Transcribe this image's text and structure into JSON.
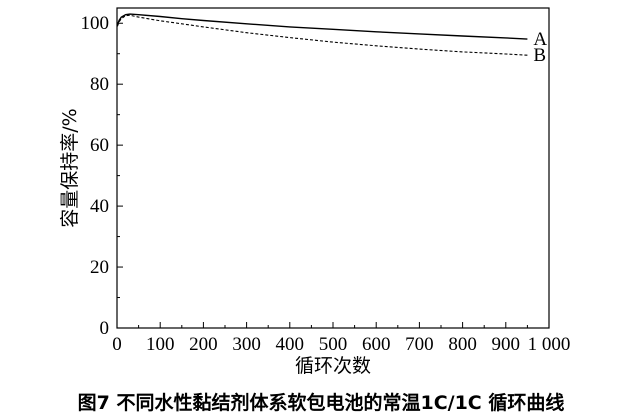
{
  "caption": "图7 不同水性黏结剂体系软包电池的常温1C/1C 循环曲线",
  "chart_data": {
    "type": "line",
    "xlabel": "循环次数",
    "ylabel": "容量保持率/%",
    "xlim": [
      0,
      1000
    ],
    "ylim": [
      0,
      105
    ],
    "x_ticks": [
      0,
      100,
      200,
      300,
      400,
      500,
      600,
      700,
      800,
      900,
      1000
    ],
    "x_tick_labels": [
      "0",
      "100",
      "200",
      "300",
      "400",
      "500",
      "600",
      "700",
      "800",
      "900",
      "1 000"
    ],
    "y_ticks": [
      0,
      20,
      40,
      60,
      80,
      100
    ],
    "y_tick_labels": [
      "0",
      "20",
      "40",
      "60",
      "80",
      "100"
    ],
    "grid": false,
    "series": [
      {
        "name": "A",
        "style": "solid",
        "color": "#000000",
        "x": [
          1,
          5,
          10,
          20,
          30,
          50,
          100,
          150,
          200,
          300,
          400,
          500,
          600,
          700,
          800,
          900,
          950
        ],
        "y": [
          99.5,
          101.0,
          102.0,
          102.8,
          103.0,
          102.8,
          102.2,
          101.5,
          100.9,
          99.8,
          98.8,
          98.0,
          97.2,
          96.5,
          95.8,
          95.2,
          94.8
        ]
      },
      {
        "name": "B",
        "style": "dashed",
        "color": "#000000",
        "x": [
          1,
          5,
          10,
          20,
          30,
          50,
          100,
          150,
          200,
          300,
          400,
          500,
          600,
          700,
          800,
          900,
          950
        ],
        "y": [
          99.0,
          100.5,
          101.5,
          102.5,
          102.6,
          102.0,
          100.8,
          99.8,
          98.8,
          96.9,
          95.3,
          93.8,
          92.6,
          91.5,
          90.6,
          89.9,
          89.5
        ]
      }
    ]
  }
}
